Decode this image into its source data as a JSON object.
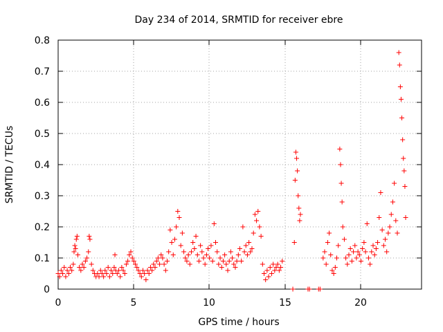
{
  "chart_data": {
    "type": "scatter",
    "title": "Day 234 of 2014, SRMTID for receiver ebre",
    "xlabel": "GPS time / hours",
    "ylabel": "SRMTID / TECUs",
    "xlim": [
      0,
      24
    ],
    "ylim": [
      0,
      0.8
    ],
    "xticks": [
      0,
      5,
      10,
      15,
      20
    ],
    "xtick_labels": [
      "0",
      "5",
      "10",
      "15",
      "20"
    ],
    "yticks": [
      0,
      0.1,
      0.2,
      0.3,
      0.4,
      0.5,
      0.6,
      0.7,
      0.8
    ],
    "ytick_labels": [
      "0",
      "0.1",
      "0.2",
      "0.3",
      "0.4",
      "0.5",
      "0.6",
      "0.7",
      "0.8"
    ],
    "grid": true,
    "marker": "+",
    "series": [
      {
        "name": "SRMTID",
        "color": "#ff0000",
        "points": [
          [
            0.0,
            0.05
          ],
          [
            0.1,
            0.04
          ],
          [
            0.2,
            0.06
          ],
          [
            0.3,
            0.05
          ],
          [
            0.4,
            0.07
          ],
          [
            0.5,
            0.04
          ],
          [
            0.6,
            0.06
          ],
          [
            0.7,
            0.05
          ],
          [
            0.8,
            0.07
          ],
          [
            0.9,
            0.06
          ],
          [
            1.0,
            0.08
          ],
          [
            1.05,
            0.12
          ],
          [
            1.1,
            0.14
          ],
          [
            1.15,
            0.13
          ],
          [
            1.2,
            0.16
          ],
          [
            1.25,
            0.17
          ],
          [
            1.3,
            0.11
          ],
          [
            1.4,
            0.07
          ],
          [
            1.5,
            0.06
          ],
          [
            1.6,
            0.08
          ],
          [
            1.7,
            0.07
          ],
          [
            1.8,
            0.09
          ],
          [
            1.9,
            0.1
          ],
          [
            2.0,
            0.12
          ],
          [
            2.05,
            0.17
          ],
          [
            2.1,
            0.16
          ],
          [
            2.2,
            0.08
          ],
          [
            2.3,
            0.06
          ],
          [
            2.4,
            0.05
          ],
          [
            2.5,
            0.04
          ],
          [
            2.6,
            0.05
          ],
          [
            2.7,
            0.04
          ],
          [
            2.8,
            0.06
          ],
          [
            2.9,
            0.05
          ],
          [
            3.0,
            0.04
          ],
          [
            3.1,
            0.06
          ],
          [
            3.2,
            0.05
          ],
          [
            3.3,
            0.07
          ],
          [
            3.4,
            0.04
          ],
          [
            3.5,
            0.06
          ],
          [
            3.6,
            0.05
          ],
          [
            3.7,
            0.07
          ],
          [
            3.75,
            0.11
          ],
          [
            3.8,
            0.06
          ],
          [
            3.9,
            0.05
          ],
          [
            4.0,
            0.06
          ],
          [
            4.1,
            0.04
          ],
          [
            4.2,
            0.07
          ],
          [
            4.3,
            0.06
          ],
          [
            4.4,
            0.05
          ],
          [
            4.5,
            0.08
          ],
          [
            4.6,
            0.09
          ],
          [
            4.7,
            0.11
          ],
          [
            4.8,
            0.12
          ],
          [
            4.9,
            0.1
          ],
          [
            5.0,
            0.09
          ],
          [
            5.1,
            0.08
          ],
          [
            5.2,
            0.07
          ],
          [
            5.3,
            0.06
          ],
          [
            5.4,
            0.05
          ],
          [
            5.5,
            0.04
          ],
          [
            5.6,
            0.06
          ],
          [
            5.7,
            0.05
          ],
          [
            5.8,
            0.03
          ],
          [
            5.9,
            0.06
          ],
          [
            6.0,
            0.05
          ],
          [
            6.1,
            0.07
          ],
          [
            6.2,
            0.06
          ],
          [
            6.3,
            0.08
          ],
          [
            6.4,
            0.07
          ],
          [
            6.5,
            0.09
          ],
          [
            6.6,
            0.1
          ],
          [
            6.7,
            0.08
          ],
          [
            6.8,
            0.11
          ],
          [
            6.9,
            0.1
          ],
          [
            7.0,
            0.08
          ],
          [
            7.1,
            0.06
          ],
          [
            7.2,
            0.09
          ],
          [
            7.3,
            0.12
          ],
          [
            7.4,
            0.19
          ],
          [
            7.5,
            0.15
          ],
          [
            7.6,
            0.11
          ],
          [
            7.7,
            0.16
          ],
          [
            7.8,
            0.2
          ],
          [
            7.9,
            0.25
          ],
          [
            8.0,
            0.23
          ],
          [
            8.1,
            0.14
          ],
          [
            8.2,
            0.18
          ],
          [
            8.3,
            0.12
          ],
          [
            8.4,
            0.1
          ],
          [
            8.5,
            0.09
          ],
          [
            8.6,
            0.11
          ],
          [
            8.7,
            0.08
          ],
          [
            8.8,
            0.12
          ],
          [
            8.9,
            0.15
          ],
          [
            9.0,
            0.13
          ],
          [
            9.1,
            0.17
          ],
          [
            9.2,
            0.11
          ],
          [
            9.3,
            0.09
          ],
          [
            9.4,
            0.14
          ],
          [
            9.5,
            0.12
          ],
          [
            9.6,
            0.1
          ],
          [
            9.7,
            0.08
          ],
          [
            9.8,
            0.11
          ],
          [
            9.9,
            0.13
          ],
          [
            10.0,
            0.1
          ],
          [
            10.1,
            0.14
          ],
          [
            10.2,
            0.09
          ],
          [
            10.3,
            0.21
          ],
          [
            10.4,
            0.15
          ],
          [
            10.5,
            0.12
          ],
          [
            10.6,
            0.08
          ],
          [
            10.7,
            0.1
          ],
          [
            10.8,
            0.07
          ],
          [
            10.9,
            0.09
          ],
          [
            11.0,
            0.11
          ],
          [
            11.1,
            0.08
          ],
          [
            11.2,
            0.06
          ],
          [
            11.3,
            0.09
          ],
          [
            11.4,
            0.12
          ],
          [
            11.5,
            0.1
          ],
          [
            11.6,
            0.08
          ],
          [
            11.7,
            0.07
          ],
          [
            11.8,
            0.09
          ],
          [
            11.9,
            0.11
          ],
          [
            12.0,
            0.13
          ],
          [
            12.1,
            0.09
          ],
          [
            12.2,
            0.2
          ],
          [
            12.3,
            0.12
          ],
          [
            12.4,
            0.14
          ],
          [
            12.5,
            0.11
          ],
          [
            12.6,
            0.15
          ],
          [
            12.7,
            0.12
          ],
          [
            12.8,
            0.13
          ],
          [
            12.9,
            0.18
          ],
          [
            13.0,
            0.24
          ],
          [
            13.1,
            0.22
          ],
          [
            13.2,
            0.25
          ],
          [
            13.3,
            0.2
          ],
          [
            13.4,
            0.17
          ],
          [
            13.5,
            0.08
          ],
          [
            13.6,
            0.05
          ],
          [
            13.7,
            0.03
          ],
          [
            13.8,
            0.06
          ],
          [
            13.9,
            0.04
          ],
          [
            14.0,
            0.07
          ],
          [
            14.1,
            0.05
          ],
          [
            14.2,
            0.08
          ],
          [
            14.3,
            0.06
          ],
          [
            14.4,
            0.07
          ],
          [
            14.5,
            0.08
          ],
          [
            14.6,
            0.06
          ],
          [
            14.7,
            0.07
          ],
          [
            14.8,
            0.09
          ],
          [
            15.6,
            0.15
          ],
          [
            15.65,
            0.35
          ],
          [
            15.7,
            0.44
          ],
          [
            15.75,
            0.42
          ],
          [
            15.8,
            0.38
          ],
          [
            15.85,
            0.3
          ],
          [
            15.9,
            0.26
          ],
          [
            15.95,
            0.22
          ],
          [
            16.0,
            0.24
          ],
          [
            15.5,
            0.0
          ],
          [
            16.5,
            0.0
          ],
          [
            16.6,
            0.0
          ],
          [
            17.2,
            0.0
          ],
          [
            17.3,
            0.0
          ],
          [
            17.5,
            0.1
          ],
          [
            17.6,
            0.12
          ],
          [
            17.7,
            0.08
          ],
          [
            17.8,
            0.15
          ],
          [
            17.9,
            0.18
          ],
          [
            18.0,
            0.11
          ],
          [
            18.1,
            0.06
          ],
          [
            18.2,
            0.05
          ],
          [
            18.3,
            0.07
          ],
          [
            18.4,
            0.1
          ],
          [
            18.5,
            0.14
          ],
          [
            18.6,
            0.45
          ],
          [
            18.65,
            0.4
          ],
          [
            18.7,
            0.34
          ],
          [
            18.75,
            0.28
          ],
          [
            18.8,
            0.2
          ],
          [
            18.9,
            0.16
          ],
          [
            19.0,
            0.1
          ],
          [
            19.1,
            0.08
          ],
          [
            19.2,
            0.11
          ],
          [
            19.3,
            0.13
          ],
          [
            19.4,
            0.09
          ],
          [
            19.5,
            0.12
          ],
          [
            19.6,
            0.14
          ],
          [
            19.7,
            0.1
          ],
          [
            19.8,
            0.12
          ],
          [
            19.9,
            0.11
          ],
          [
            20.0,
            0.09
          ],
          [
            20.1,
            0.13
          ],
          [
            20.2,
            0.15
          ],
          [
            20.3,
            0.12
          ],
          [
            20.4,
            0.21
          ],
          [
            20.5,
            0.1
          ],
          [
            20.6,
            0.08
          ],
          [
            20.7,
            0.12
          ],
          [
            20.8,
            0.14
          ],
          [
            20.9,
            0.11
          ],
          [
            21.0,
            0.13
          ],
          [
            21.1,
            0.15
          ],
          [
            21.2,
            0.23
          ],
          [
            21.3,
            0.31
          ],
          [
            21.4,
            0.19
          ],
          [
            21.5,
            0.14
          ],
          [
            21.6,
            0.16
          ],
          [
            21.7,
            0.12
          ],
          [
            21.8,
            0.18
          ],
          [
            21.9,
            0.2
          ],
          [
            22.0,
            0.24
          ],
          [
            22.1,
            0.28
          ],
          [
            22.2,
            0.34
          ],
          [
            22.3,
            0.22
          ],
          [
            22.4,
            0.18
          ],
          [
            22.5,
            0.76
          ],
          [
            22.55,
            0.72
          ],
          [
            22.6,
            0.65
          ],
          [
            22.65,
            0.61
          ],
          [
            22.7,
            0.55
          ],
          [
            22.75,
            0.48
          ],
          [
            22.8,
            0.42
          ],
          [
            22.85,
            0.38
          ],
          [
            22.9,
            0.33
          ],
          [
            22.95,
            0.23
          ]
        ]
      }
    ]
  }
}
